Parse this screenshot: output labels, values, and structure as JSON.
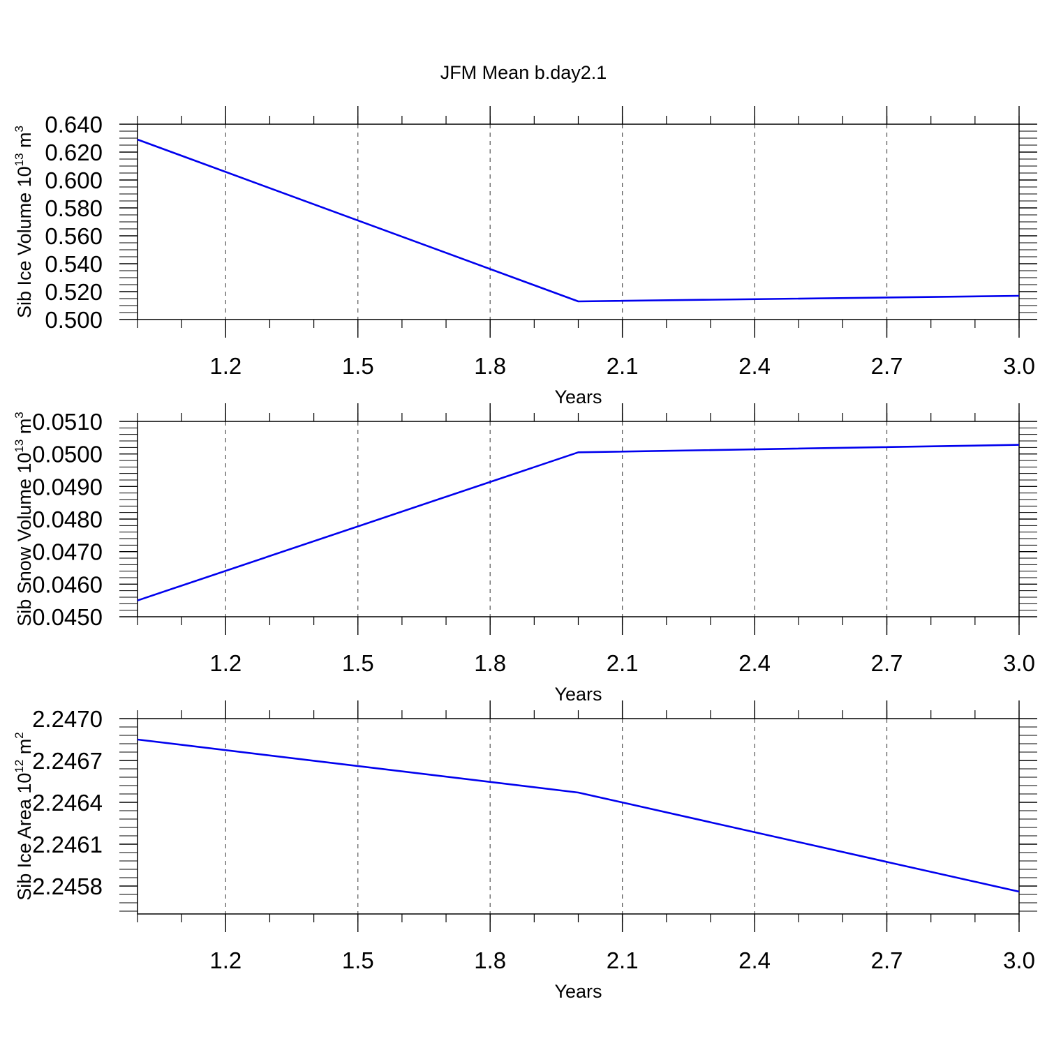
{
  "title": "JFM Mean b.day2.1",
  "line_color": "#0000ee",
  "chart_data": [
    {
      "type": "line",
      "xlabel": "Years",
      "ylabel": {
        "text": "Sib Ice Volume 10",
        "sup": "13",
        "unit": " m",
        "unit_sup": "3"
      },
      "xlim": [
        1.0,
        3.0
      ],
      "ylim": [
        0.5,
        0.64
      ],
      "x_ticks": [
        1.2,
        1.5,
        1.8,
        2.1,
        2.4,
        2.7,
        3.0
      ],
      "x_tick_labels": [
        "1.2",
        "1.5",
        "1.8",
        "2.1",
        "2.4",
        "2.7",
        "3.0"
      ],
      "y_ticks": [
        0.5,
        0.52,
        0.54,
        0.56,
        0.58,
        0.6,
        0.62,
        0.64
      ],
      "y_tick_labels": [
        "0.500",
        "0.520",
        "0.540",
        "0.560",
        "0.580",
        "0.600",
        "0.620",
        "0.640"
      ],
      "x_minor_step": 0.1,
      "y_minor_step": 0.005,
      "grid": "vertical-dashed",
      "x": [
        1.0,
        2.0,
        3.0
      ],
      "y": [
        0.629,
        0.513,
        0.517
      ]
    },
    {
      "type": "line",
      "xlabel": "Years",
      "ylabel": {
        "text": "Sib Snow Volume 10",
        "sup": "13",
        "unit": " m",
        "unit_sup": "3"
      },
      "xlim": [
        1.0,
        3.0
      ],
      "ylim": [
        0.045,
        0.051
      ],
      "x_ticks": [
        1.2,
        1.5,
        1.8,
        2.1,
        2.4,
        2.7,
        3.0
      ],
      "x_tick_labels": [
        "1.2",
        "1.5",
        "1.8",
        "2.1",
        "2.4",
        "2.7",
        "3.0"
      ],
      "y_ticks": [
        0.045,
        0.046,
        0.047,
        0.048,
        0.049,
        0.05,
        0.051
      ],
      "y_tick_labels": [
        "0.0450",
        "0.0460",
        "0.0470",
        "0.0480",
        "0.0490",
        "0.0500",
        "0.0510"
      ],
      "x_minor_step": 0.1,
      "y_minor_step": 0.0002,
      "grid": "vertical-dashed",
      "x": [
        1.0,
        2.0,
        3.0
      ],
      "y": [
        0.0455,
        0.05005,
        0.05028
      ]
    },
    {
      "type": "line",
      "xlabel": "Years",
      "ylabel": {
        "text": "Sib Ice Area 10",
        "sup": "12",
        "unit": " m",
        "unit_sup": "2"
      },
      "xlim": [
        1.0,
        3.0
      ],
      "ylim": [
        2.2456,
        2.247
      ],
      "x_ticks": [
        1.2,
        1.5,
        1.8,
        2.1,
        2.4,
        2.7,
        3.0
      ],
      "x_tick_labels": [
        "1.2",
        "1.5",
        "1.8",
        "2.1",
        "2.4",
        "2.7",
        "3.0"
      ],
      "y_ticks": [
        2.2458,
        2.2461,
        2.2464,
        2.2467,
        2.247
      ],
      "y_tick_labels": [
        "2.2458",
        "2.2461",
        "2.2464",
        "2.2467",
        "2.2470"
      ],
      "x_minor_step": 0.1,
      "y_minor_step": 6e-05,
      "grid": "vertical-dashed",
      "x": [
        1.0,
        2.0,
        3.0
      ],
      "y": [
        2.24685,
        2.24647,
        2.24576
      ]
    }
  ]
}
